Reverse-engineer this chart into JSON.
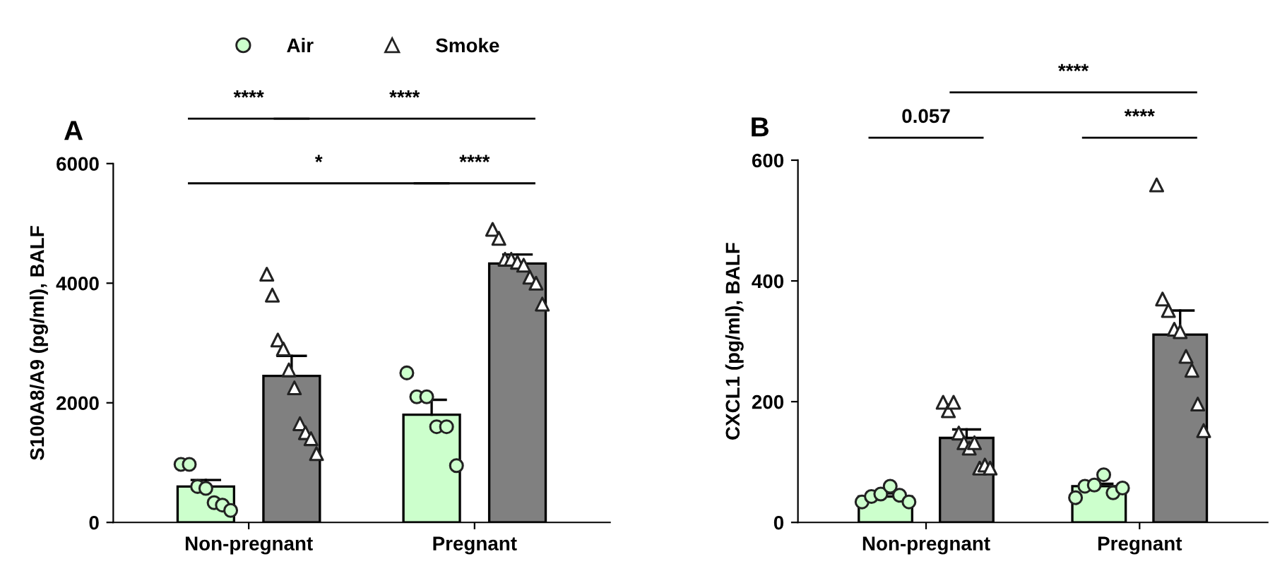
{
  "chart_data": [
    {
      "type": "bar",
      "title": "A",
      "ylabel": "S100A8/A9 (pg/ml), BALF",
      "categories": [
        "Non-pregnant",
        "Pregnant"
      ],
      "ylim": [
        0,
        6000
      ],
      "yticks": [
        0,
        2000,
        4000,
        6000
      ],
      "legend": "top",
      "grid": false,
      "annotations": [
        "****",
        "****",
        "*",
        "****"
      ],
      "series": [
        {
          "color": "#ccffcc",
          "values": [
            600,
            1800
          ],
          "errors": [
            [
              600,
              710
            ],
            [
              1800,
              2050
            ]
          ]
        },
        {
          "color": "#808080",
          "values": [
            2450,
            4330
          ],
          "errors": [
            [
              2450,
              2785
            ],
            [
              4330,
              4480
            ]
          ]
        },
        {
          "type": "scatter",
          "name": "Air",
          "marker": "circle",
          "color": "#ccffcc",
          "x": [
            "Non-pregnant",
            "Non-pregnant",
            "Non-pregnant",
            "Non-pregnant",
            "Non-pregnant",
            "Non-pregnant",
            "Non-pregnant",
            "Pregnant",
            "Pregnant",
            "Pregnant",
            "Pregnant",
            "Pregnant",
            "Pregnant"
          ],
          "values": [
            970,
            970,
            600,
            570,
            330,
            290,
            200,
            2500,
            2100,
            2100,
            1600,
            1600,
            950
          ]
        },
        {
          "type": "scatter",
          "name": "Smoke",
          "marker": "triangle",
          "color": "#ffffff",
          "x": [
            "Non-pregnant",
            "Non-pregnant",
            "Non-pregnant",
            "Non-pregnant",
            "Non-pregnant",
            "Non-pregnant",
            "Non-pregnant",
            "Non-pregnant",
            "Non-pregnant",
            "Non-pregnant",
            "Pregnant",
            "Pregnant",
            "Pregnant",
            "Pregnant",
            "Pregnant",
            "Pregnant",
            "Pregnant",
            "Pregnant",
            "Pregnant"
          ],
          "values": [
            4150,
            3800,
            3050,
            2900,
            2550,
            2250,
            1650,
            1500,
            1400,
            1150,
            4900,
            4750,
            4400,
            4400,
            4350,
            4300,
            4100,
            4000,
            3650
          ]
        }
      ]
    },
    {
      "type": "bar",
      "title": "B",
      "ylabel": "CXCL1 (pg/ml), BALF",
      "categories": [
        "Non-pregnant",
        "Pregnant"
      ],
      "ylim": [
        0,
        600
      ],
      "yticks": [
        0,
        200,
        400,
        600
      ],
      "grid": false,
      "annotations": [
        "0.057",
        "****",
        "****"
      ],
      "series": [
        {
          "color": "#ccffcc",
          "values": [
            43,
            60
          ],
          "errors": [
            [
              43,
              48
            ],
            [
              60,
              64
            ]
          ]
        },
        {
          "color": "#808080",
          "values": [
            140,
            311
          ],
          "errors": [
            [
              140,
              154
            ],
            [
              311,
              351
            ]
          ]
        },
        {
          "type": "scatter",
          "marker": "circle",
          "color": "#ccffcc",
          "x": [
            "Non-pregnant",
            "Non-pregnant",
            "Non-pregnant",
            "Non-pregnant",
            "Non-pregnant",
            "Non-pregnant",
            "Pregnant",
            "Pregnant",
            "Pregnant",
            "Pregnant",
            "Pregnant",
            "Pregnant"
          ],
          "values": [
            34,
            43,
            47,
            60,
            45,
            34,
            41,
            60,
            62,
            79,
            49,
            57
          ]
        },
        {
          "type": "scatter",
          "marker": "triangle",
          "color": "#ffffff",
          "x": [
            "Non-pregnant",
            "Non-pregnant",
            "Non-pregnant",
            "Non-pregnant",
            "Non-pregnant",
            "Non-pregnant",
            "Non-pregnant",
            "Non-pregnant",
            "Non-pregnant",
            "Non-pregnant",
            "Pregnant",
            "Pregnant",
            "Pregnant",
            "Pregnant",
            "Pregnant",
            "Pregnant",
            "Pregnant",
            "Pregnant",
            "Pregnant"
          ],
          "values": [
            199,
            185,
            199,
            148,
            132,
            123,
            132,
            90,
            95,
            90,
            559,
            370,
            351,
            320,
            316,
            275,
            252,
            196,
            152
          ]
        }
      ]
    }
  ]
}
